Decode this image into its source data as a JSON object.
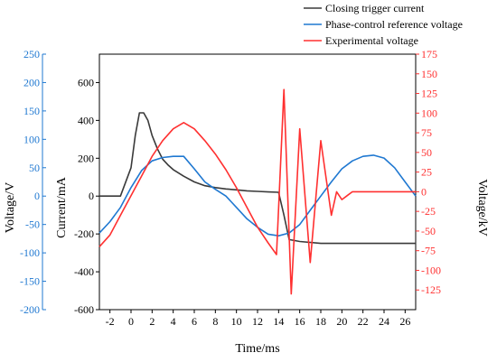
{
  "chart_data": {
    "type": "line",
    "xlabel": "Time/ms",
    "xlim": [
      -3,
      27
    ],
    "xticks": [
      -2,
      0,
      2,
      4,
      6,
      8,
      10,
      12,
      14,
      16,
      18,
      20,
      22,
      24,
      26
    ],
    "axes": {
      "current": {
        "label": "Current/mA",
        "lim": [
          -600,
          750
        ],
        "ticks": [
          -600,
          -400,
          -200,
          0,
          200,
          400,
          600
        ],
        "color": "#000000"
      },
      "voltage_v": {
        "label": "Voltage/V",
        "lim": [
          -200,
          250
        ],
        "ticks": [
          -200,
          -150,
          -100,
          -50,
          0,
          50,
          100,
          150,
          200,
          250
        ],
        "color": "#1f78d1"
      },
      "voltage_kv": {
        "label": "Voltage/kV",
        "lim": [
          -150,
          175
        ],
        "ticks": [
          -125,
          -100,
          -75,
          -50,
          -25,
          0,
          25,
          50,
          75,
          100,
          125,
          150,
          175
        ],
        "color": "#ff3030"
      }
    },
    "legend": {
      "position": "top-right",
      "entries": [
        "Closing trigger current",
        "Phase-control reference voltage",
        "Experimental voltage"
      ]
    },
    "series": [
      {
        "name": "Closing trigger current",
        "axis": "current",
        "color": "#3a3a3a",
        "x": [
          -3,
          -1,
          0,
          0.4,
          0.8,
          1.2,
          1.6,
          2,
          2.5,
          3,
          3.5,
          4,
          5,
          6,
          7,
          8,
          9,
          10,
          11,
          12,
          13,
          14,
          14.5,
          15,
          16,
          18,
          20,
          22,
          24,
          26,
          27
        ],
        "y": [
          0,
          0,
          150,
          320,
          440,
          440,
          400,
          320,
          250,
          195,
          165,
          140,
          105,
          75,
          55,
          45,
          38,
          33,
          28,
          25,
          22,
          20,
          -100,
          -230,
          -240,
          -250,
          -250,
          -250,
          -250,
          -250,
          -250
        ]
      },
      {
        "name": "Phase-control reference voltage",
        "axis": "voltage_v",
        "color": "#1f78d1",
        "x": [
          -3,
          -2,
          -1,
          0,
          1,
          2,
          3,
          4,
          5,
          6,
          7,
          8,
          9,
          10,
          11,
          12,
          13,
          14,
          15,
          16,
          17,
          18,
          19,
          20,
          21,
          22,
          23,
          24,
          25,
          26,
          27
        ],
        "y": [
          -65,
          -45,
          -20,
          15,
          45,
          62,
          68,
          70,
          70,
          48,
          25,
          12,
          0,
          -20,
          -40,
          -55,
          -67,
          -70,
          -65,
          -50,
          -25,
          0,
          25,
          48,
          62,
          70,
          72,
          67,
          50,
          25,
          0
        ]
      },
      {
        "name": "Experimental voltage",
        "axis": "voltage_kv",
        "color": "#ff3030",
        "x": [
          -3,
          -2,
          -1,
          0,
          1,
          2,
          3,
          4,
          5,
          6,
          7,
          8,
          9,
          10,
          11,
          12,
          13,
          13.8,
          14.5,
          15.2,
          16,
          17,
          18,
          19,
          19.5,
          20,
          20.5,
          21,
          22,
          24,
          26,
          27
        ],
        "y": [
          -70,
          -55,
          -30,
          -5,
          20,
          45,
          65,
          80,
          88,
          80,
          65,
          48,
          28,
          5,
          -20,
          -45,
          -65,
          -80,
          130,
          -130,
          80,
          -90,
          65,
          -30,
          0,
          -10,
          -5,
          0,
          0,
          0,
          0,
          0
        ]
      }
    ]
  }
}
